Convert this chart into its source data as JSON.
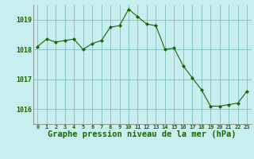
{
  "x": [
    0,
    1,
    2,
    3,
    4,
    5,
    6,
    7,
    8,
    9,
    10,
    11,
    12,
    13,
    14,
    15,
    16,
    17,
    18,
    19,
    20,
    21,
    22,
    23
  ],
  "y": [
    1018.1,
    1018.35,
    1018.25,
    1018.3,
    1018.35,
    1018.0,
    1018.2,
    1018.3,
    1018.75,
    1018.8,
    1019.35,
    1019.1,
    1018.85,
    1018.8,
    1018.0,
    1018.05,
    1017.45,
    1017.05,
    1016.65,
    1016.1,
    1016.1,
    1016.15,
    1016.2,
    1016.6
  ],
  "line_color": "#1a6600",
  "marker_color": "#1a6600",
  "bg_color": "#c8eef0",
  "grid_color": "#7fbfbf",
  "tick_label_color": "#1a6600",
  "ylim": [
    1015.5,
    1019.5
  ],
  "yticks": [
    1016,
    1017,
    1018,
    1019
  ],
  "xlim": [
    -0.5,
    23.5
  ],
  "xticks": [
    0,
    1,
    2,
    3,
    4,
    5,
    6,
    7,
    8,
    9,
    10,
    11,
    12,
    13,
    14,
    15,
    16,
    17,
    18,
    19,
    20,
    21,
    22,
    23
  ],
  "xlabel": "Graphe pression niveau de la mer (hPa)",
  "xlabel_fontsize": 7.5,
  "xtick_fontsize": 5.0,
  "ytick_fontsize": 6.0
}
